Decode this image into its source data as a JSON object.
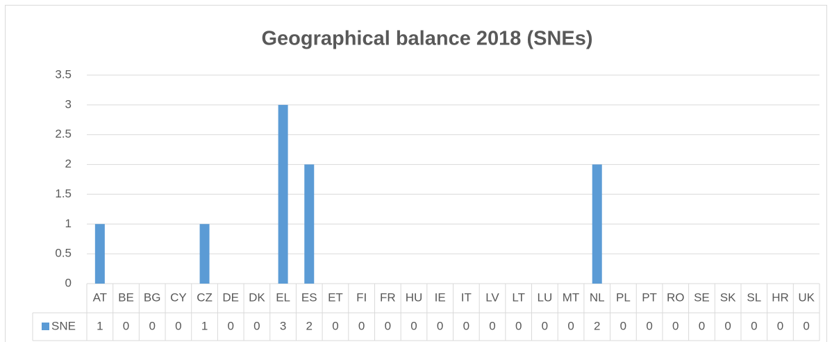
{
  "chart_data": {
    "type": "bar",
    "title": "Geographical balance 2018 (SNEs)",
    "categories": [
      "AT",
      "BE",
      "BG",
      "CY",
      "CZ",
      "DE",
      "DK",
      "EL",
      "ES",
      "ET",
      "FI",
      "FR",
      "HU",
      "IE",
      "IT",
      "LV",
      "LT",
      "LU",
      "MT",
      "NL",
      "PL",
      "PT",
      "RO",
      "SE",
      "SK",
      "SL",
      "HR",
      "UK"
    ],
    "series": [
      {
        "name": "SNE",
        "color": "#5b9bd5",
        "values": [
          1,
          0,
          0,
          0,
          1,
          0,
          0,
          3,
          2,
          0,
          0,
          0,
          0,
          0,
          0,
          0,
          0,
          0,
          0,
          2,
          0,
          0,
          0,
          0,
          0,
          0,
          0,
          0
        ]
      }
    ],
    "ylim": [
      0,
      3.5
    ],
    "yticks": [
      0,
      0.5,
      1,
      1.5,
      2,
      2.5,
      3,
      3.5
    ],
    "grid": true,
    "data_table": true
  }
}
